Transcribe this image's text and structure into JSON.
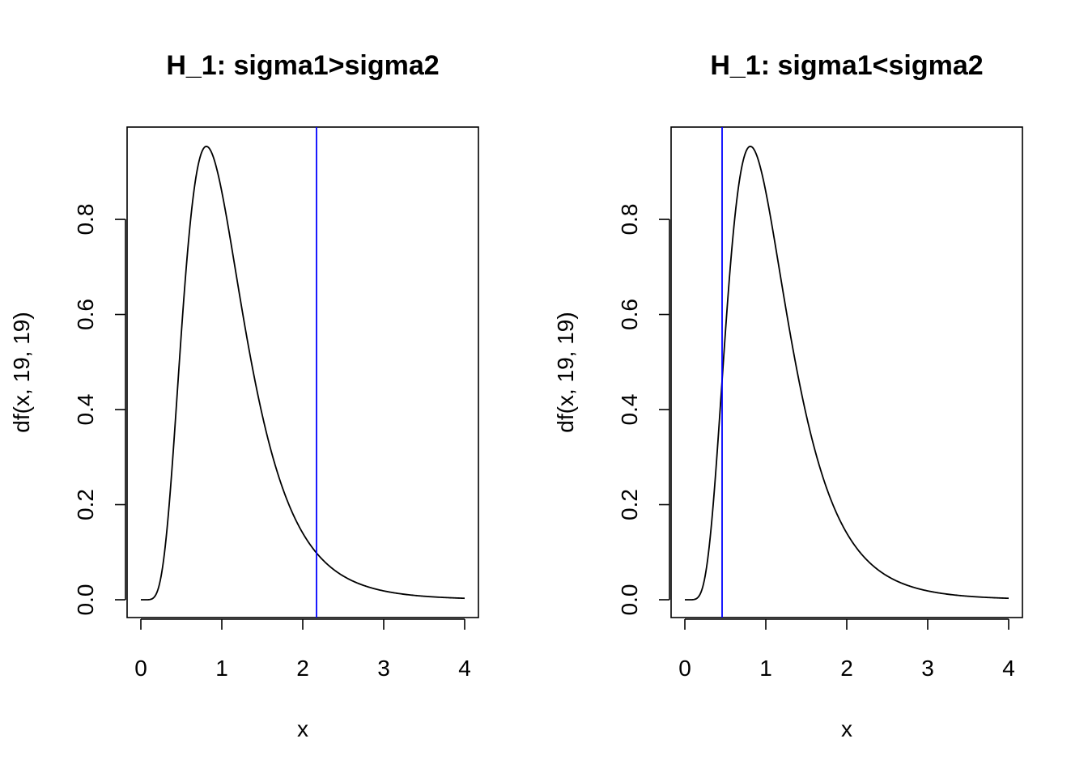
{
  "chart_data": [
    {
      "type": "line",
      "title": "H_1: sigma1>sigma2",
      "xlabel": "x",
      "ylabel": "df(x, 19, 19)",
      "xlim": [
        0,
        4
      ],
      "ylim": [
        0,
        0.96
      ],
      "x_ticks": [
        0,
        1,
        2,
        3,
        4
      ],
      "x_tick_labels": [
        "0",
        "1",
        "2",
        "3",
        "4"
      ],
      "y_ticks": [
        0,
        0.2,
        0.4,
        0.6,
        0.8
      ],
      "y_tick_labels": [
        "0.0",
        "0.2",
        "0.4",
        "0.6",
        "0.8"
      ],
      "grid": false,
      "series": [
        {
          "color": "#000000",
          "x": [
            0,
            0.1,
            0.2,
            0.3,
            0.4,
            0.5,
            0.6,
            0.7,
            0.8,
            0.9,
            1.0,
            1.1,
            1.2,
            1.3,
            1.4,
            1.5,
            1.6,
            1.8,
            2.0,
            2.2,
            2.5,
            3.0,
            3.5,
            4.0
          ],
          "y": [
            0,
            0.001,
            0.04,
            0.24,
            0.52,
            0.76,
            0.9,
            0.95,
            0.955,
            0.93,
            0.88,
            0.8,
            0.71,
            0.61,
            0.52,
            0.43,
            0.36,
            0.24,
            0.16,
            0.1,
            0.05,
            0.017,
            0.006,
            0.002
          ]
        }
      ],
      "vline": {
        "x": 2.17,
        "color": "#0000ff"
      }
    },
    {
      "type": "line",
      "title": "H_1: sigma1<sigma2",
      "xlabel": "x",
      "ylabel": "df(x, 19, 19)",
      "xlim": [
        0,
        4
      ],
      "ylim": [
        0,
        0.96
      ],
      "x_ticks": [
        0,
        1,
        2,
        3,
        4
      ],
      "x_tick_labels": [
        "0",
        "1",
        "2",
        "3",
        "4"
      ],
      "y_ticks": [
        0,
        0.2,
        0.4,
        0.6,
        0.8
      ],
      "y_tick_labels": [
        "0.0",
        "0.2",
        "0.4",
        "0.6",
        "0.8"
      ],
      "grid": false,
      "series": [
        {
          "color": "#000000",
          "x": [
            0,
            0.1,
            0.2,
            0.3,
            0.4,
            0.5,
            0.6,
            0.7,
            0.8,
            0.9,
            1.0,
            1.1,
            1.2,
            1.3,
            1.4,
            1.5,
            1.6,
            1.8,
            2.0,
            2.2,
            2.5,
            3.0,
            3.5,
            4.0
          ],
          "y": [
            0,
            0.001,
            0.04,
            0.24,
            0.52,
            0.76,
            0.9,
            0.95,
            0.955,
            0.93,
            0.88,
            0.8,
            0.71,
            0.61,
            0.52,
            0.43,
            0.36,
            0.24,
            0.16,
            0.1,
            0.05,
            0.017,
            0.006,
            0.002
          ]
        }
      ],
      "vline": {
        "x": 0.46,
        "color": "#0000ff"
      }
    }
  ]
}
